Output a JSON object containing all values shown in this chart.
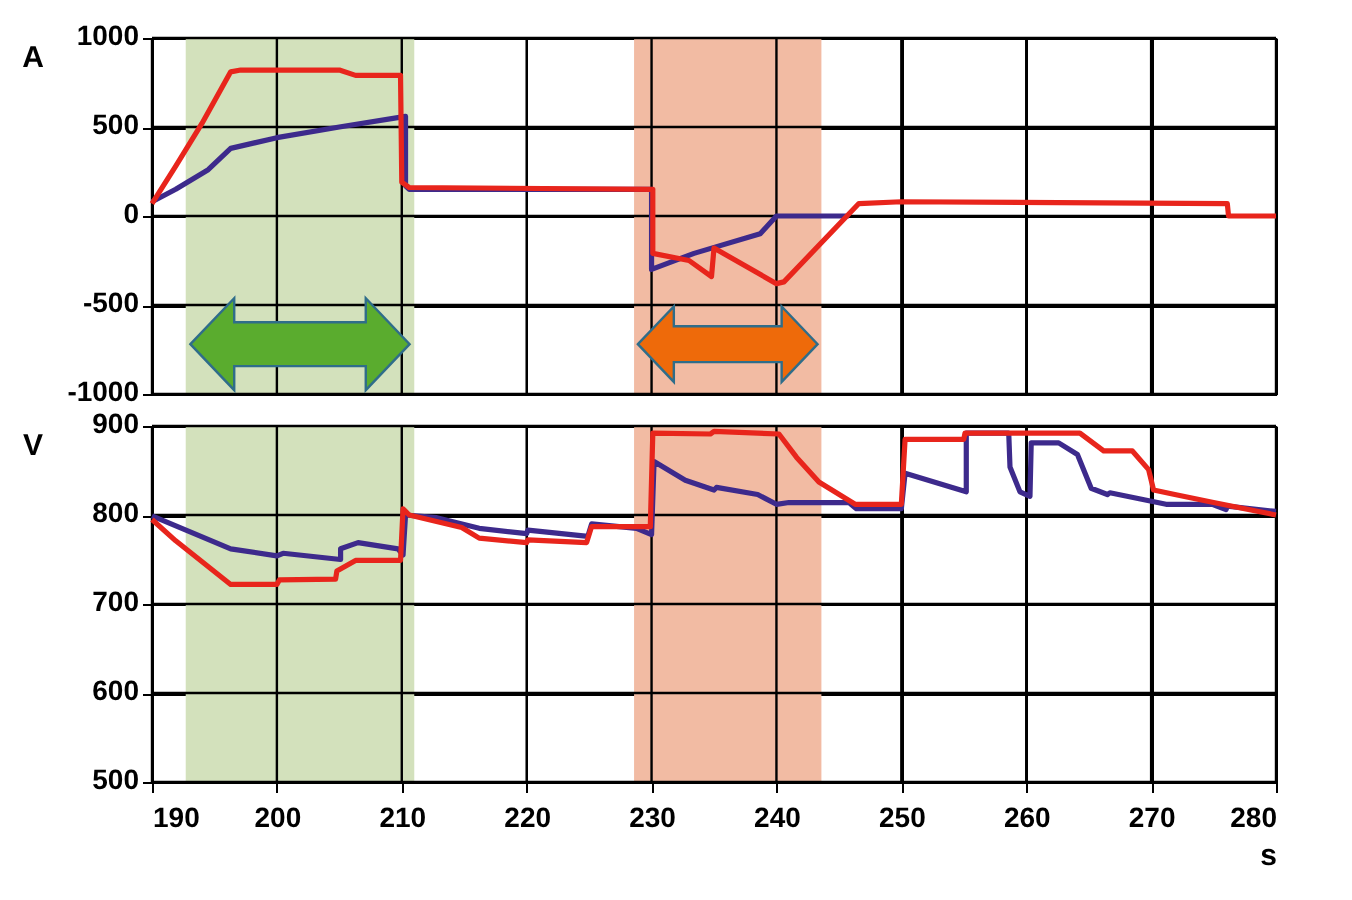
{
  "chart_data": [
    {
      "type": "line",
      "ylabel": "A",
      "xlim": [
        190,
        280
      ],
      "xticks": [
        190,
        200,
        210,
        220,
        230,
        240,
        250,
        260,
        270,
        280
      ],
      "ylim": [
        -1000,
        1000
      ],
      "yticks": [
        -1000,
        -500,
        0,
        500,
        1000
      ],
      "grid": true,
      "tick_labels": "y",
      "line_style": "solid",
      "bands": [
        {
          "axis": "x",
          "from": 192.7,
          "to": 211,
          "color": "#d3e1bc"
        },
        {
          "axis": "x",
          "from": 228.6,
          "to": 243.6,
          "color": "#f2bba3"
        }
      ],
      "series": [
        {
          "color": "#3d2a8c",
          "x": [
            190,
            191.9,
            194.5,
            196.3,
            200,
            205,
            210.3,
            210.3,
            210.6,
            230,
            230,
            233.4,
            238.7,
            240,
            245.8
          ],
          "values": [
            80,
            150,
            260,
            380,
            440,
            500,
            560,
            170,
            150,
            150,
            -300,
            -210,
            -100,
            0,
            0
          ]
        },
        {
          "color": "#e8251c",
          "x": [
            190,
            191.9,
            194,
            196.3,
            197.1,
            205,
            206.3,
            209.9,
            210,
            210.6,
            230.1,
            230.1,
            233,
            234.8,
            235,
            240,
            240.6,
            246.6,
            250,
            276.1,
            276.2,
            280
          ],
          "values": [
            70,
            280,
            520,
            810,
            820,
            820,
            790,
            790,
            190,
            160,
            150,
            -210,
            -250,
            -340,
            -180,
            -380,
            -370,
            70,
            80,
            70,
            0,
            0
          ]
        }
      ]
    },
    {
      "type": "line",
      "ylabel": "V",
      "xlabel": "s",
      "xlim": [
        190,
        280
      ],
      "xticks": [
        190,
        200,
        210,
        220,
        230,
        240,
        250,
        260,
        270,
        280
      ],
      "ylim": [
        500,
        900
      ],
      "yticks": [
        500,
        600,
        700,
        800,
        900
      ],
      "grid": true,
      "line_style": "solid",
      "bands": [
        {
          "axis": "x",
          "from": 192.7,
          "to": 211,
          "color": "#d3e1bc"
        },
        {
          "axis": "x",
          "from": 228.6,
          "to": 243.6,
          "color": "#f2bba3"
        }
      ],
      "series": [
        {
          "color": "#3d2a8c",
          "x": [
            190,
            196.3,
            200,
            200.5,
            205.1,
            205.1,
            206.5,
            209.7,
            210.1,
            210.3,
            212.8,
            216.2,
            220,
            220.1,
            224.9,
            225.2,
            228.8,
            230,
            230.2,
            232.7,
            235,
            235.2,
            238.5,
            240,
            241,
            245.8,
            246.4,
            250,
            250.3,
            255.2,
            255.2,
            258.6,
            258.7,
            259.5,
            260.3,
            260.4,
            262.6,
            264.1,
            265.2,
            266.5,
            266.7,
            271.2,
            274.9,
            276,
            276.1,
            280
          ],
          "values": [
            799,
            762,
            754,
            757,
            750,
            762,
            769,
            762,
            755,
            800,
            797,
            785,
            779,
            783,
            776,
            790,
            785,
            778,
            860,
            839,
            828,
            831,
            823,
            812,
            814,
            814,
            807,
            807,
            847,
            826,
            892,
            892,
            854,
            826,
            821,
            881,
            881,
            868,
            830,
            823,
            825,
            812,
            812,
            806,
            810,
            804
          ]
        },
        {
          "color": "#e8251c",
          "x": [
            190,
            191.9,
            196.3,
            200,
            200.2,
            204.7,
            204.8,
            206.3,
            209.9,
            210.1,
            210.6,
            214.8,
            216.2,
            220,
            220.1,
            224.8,
            225.2,
            229.9,
            230.1,
            234.7,
            235,
            240.2,
            241.6,
            243.4,
            246.3,
            250,
            250.3,
            255,
            255.1,
            264.3,
            266.2,
            268.5,
            269.8,
            270.2,
            271.9,
            275,
            280
          ],
          "values": [
            795,
            771,
            722,
            722,
            727,
            728,
            737,
            749,
            749,
            807,
            800,
            786,
            774,
            769,
            772,
            769,
            787,
            787,
            892,
            891,
            894,
            891,
            865,
            837,
            812,
            812,
            885,
            885,
            892,
            892,
            872,
            872,
            851,
            828,
            823,
            814,
            800
          ]
        }
      ]
    }
  ]
}
